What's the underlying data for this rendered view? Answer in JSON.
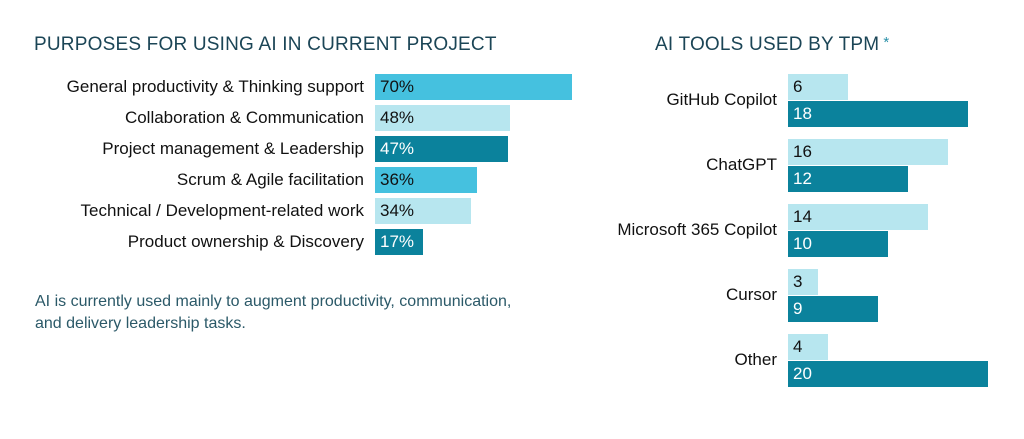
{
  "colors": {
    "light": "#b7e6ef",
    "mid": "#45c1df",
    "dark": "#0b829c",
    "title": "#1b4556"
  },
  "note": "AI is currently used mainly to augment productivity, communication, and delivery leadership tasks.",
  "chart_data": [
    {
      "type": "bar",
      "orientation": "horizontal",
      "title": "PURPOSES FOR USING AI IN CURRENT PROJECT",
      "categories": [
        "General productivity & Thinking support",
        "Collaboration & Communication",
        "Project management & Leadership",
        "Scrum & Agile facilitation",
        "Technical / Development-related work",
        "Product ownership & Discovery"
      ],
      "values": [
        70,
        48,
        47,
        36,
        34,
        17
      ],
      "value_labels": [
        "70%",
        "48%",
        "47%",
        "36%",
        "34%",
        "17%"
      ],
      "bar_colors": [
        "mid",
        "light",
        "dark",
        "mid",
        "light",
        "dark"
      ],
      "unit": "%",
      "xlabel": "",
      "ylabel": "",
      "grid": false
    },
    {
      "type": "bar",
      "orientation": "horizontal",
      "title": "AI TOOLS USED BY TPM",
      "title_marker": "*",
      "categories": [
        "GitHub Copilot",
        "ChatGPT",
        "Microsoft 365 Copilot",
        "Cursor",
        "Other"
      ],
      "series": [
        {
          "name": "series-1",
          "color": "light",
          "values": [
            6,
            16,
            14,
            3,
            4
          ]
        },
        {
          "name": "series-2",
          "color": "dark",
          "values": [
            18,
            12,
            10,
            9,
            20
          ]
        }
      ],
      "xlabel": "",
      "ylabel": "",
      "grid": false,
      "legend": "none"
    }
  ]
}
